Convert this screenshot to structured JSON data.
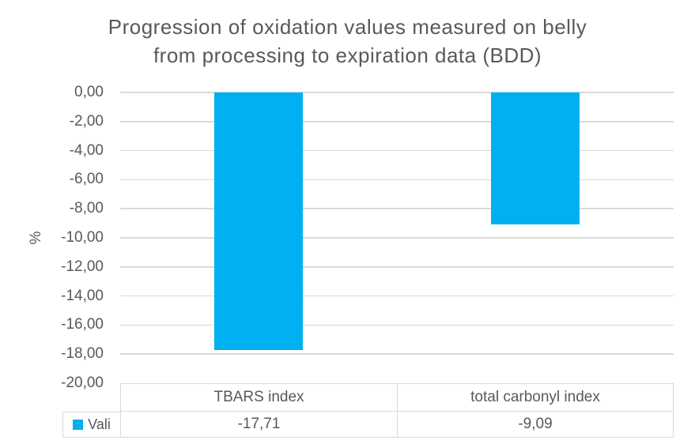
{
  "chart_data": {
    "type": "bar",
    "title": "Progression of oxidation values measured on belly\nfrom processing to expiration data (BDD)",
    "ylabel": "%",
    "ylim": [
      -20,
      0
    ],
    "y_tick_step": 2,
    "y_tick_labels": [
      "0,00",
      "-2,00",
      "-4,00",
      "-6,00",
      "-8,00",
      "-10,00",
      "-12,00",
      "-14,00",
      "-16,00",
      "-18,00",
      "-20,00"
    ],
    "categories": [
      "TBARS index",
      "total carbonyl index"
    ],
    "series": [
      {
        "name": "Vali",
        "values": [
          -17.71,
          -9.09
        ],
        "value_labels": [
          "-17,71",
          "-9,09"
        ],
        "color": "#00b0f0"
      }
    ],
    "grid": true,
    "legend_position": "data-table-left",
    "decimal_separator": ","
  },
  "colors": {
    "bar": "#00b0f0",
    "gridline": "#d9d9d9",
    "table_border": "#d9d9d9",
    "text": "#595959",
    "background": "#ffffff"
  }
}
